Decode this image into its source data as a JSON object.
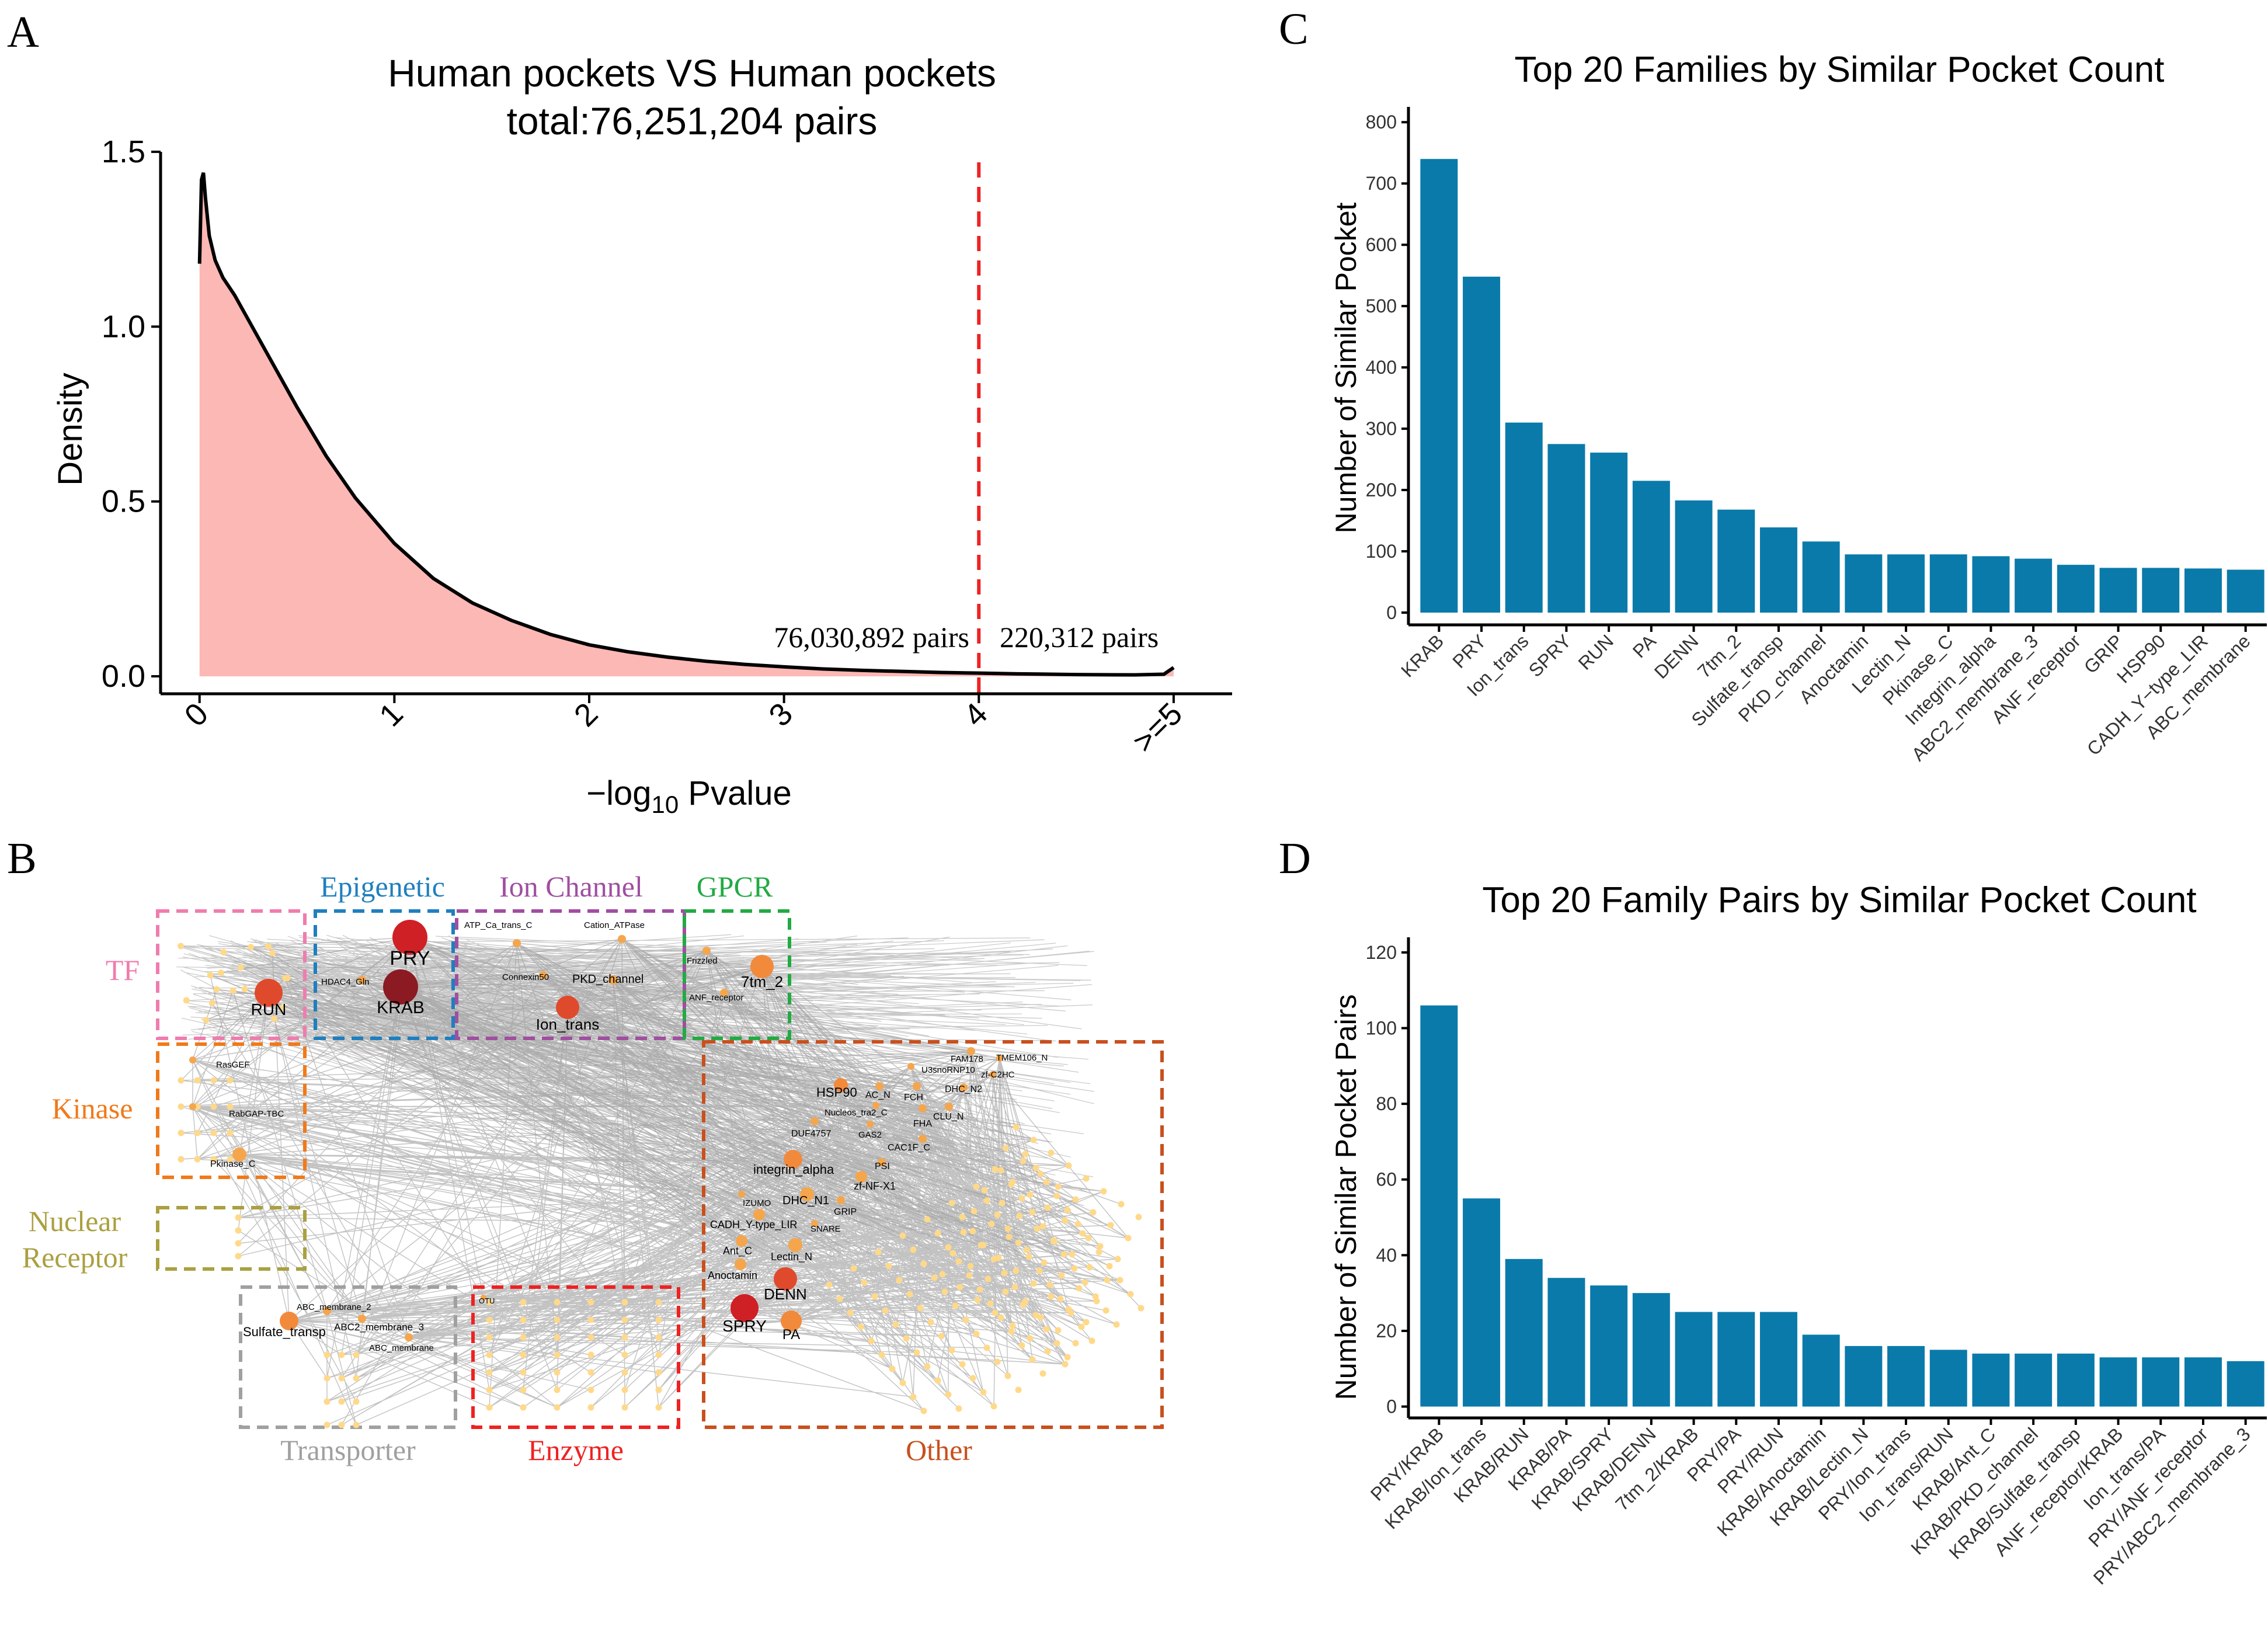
{
  "colors": {
    "bar": "#0a7aaa",
    "density_fill": "#fcb8b4",
    "density_line": "#000000",
    "threshold": "#ee2222",
    "edge": "#9a9a9a",
    "TF": "#f07cae",
    "Epigenetic": "#1f7fbf",
    "Ion Channel": "#a04ea0",
    "GPCR": "#22aa44",
    "Kinase": "#f07a1a",
    "Nuclear Receptor": "#aaa040",
    "Transporter": "#a0a0a0",
    "Enzyme": "#ee2222",
    "Other": "#c8501e"
  },
  "panels": {
    "A": {
      "letter": "A",
      "title": "Human pockets VS Human pockets",
      "subtitle": "total:76,251,204 pairs",
      "ylabel": "Density",
      "xlabel_prefix": "−log",
      "xlabel_sub": "10",
      "xlabel_suffix": " Pvalue",
      "left_annotation": "76,030,892 pairs",
      "right_annotation": "220,312 pairs"
    },
    "B": {
      "letter": "B",
      "groups": [
        {
          "name": "TF",
          "color_key": "TF"
        },
        {
          "name": "Epigenetic",
          "color_key": "Epigenetic"
        },
        {
          "name": "Ion Channel",
          "color_key": "Ion Channel"
        },
        {
          "name": "GPCR",
          "color_key": "GPCR"
        },
        {
          "name": "Kinase",
          "color_key": "Kinase"
        },
        {
          "name": "Nuclear",
          "color_key": "Nuclear Receptor"
        },
        {
          "name": "Receptor",
          "color_key": "Nuclear Receptor"
        },
        {
          "name": "Transporter",
          "color_key": "Transporter"
        },
        {
          "name": "Enzyme",
          "color_key": "Enzyme"
        },
        {
          "name": "Other",
          "color_key": "Other"
        }
      ],
      "nodes": [
        {
          "label": "PRY",
          "tier": 1
        },
        {
          "label": "KRAB",
          "tier": 0
        },
        {
          "label": "RUN",
          "tier": 2
        },
        {
          "label": "HDAC4_Gln",
          "tier": 4
        },
        {
          "label": "ATP_Ca_trans_C",
          "tier": 4
        },
        {
          "label": "Cation_ATPase",
          "tier": 4
        },
        {
          "label": "Connexin50",
          "tier": 4
        },
        {
          "label": "PKD_channel",
          "tier": 4
        },
        {
          "label": "Ion_trans",
          "tier": 2
        },
        {
          "label": "Frizzled",
          "tier": 4
        },
        {
          "label": "7tm_2",
          "tier": 3
        },
        {
          "label": "ANF_receptor",
          "tier": 4
        },
        {
          "label": "RasGEF",
          "tier": 4
        },
        {
          "label": "RabGAP-TBC",
          "tier": 4
        },
        {
          "label": "Pkinase_C",
          "tier": 4
        },
        {
          "label": "ABC_membrane_2",
          "tier": 4
        },
        {
          "label": "Sulfate_transp",
          "tier": 3
        },
        {
          "label": "ABC2_membrane_3",
          "tier": 4
        },
        {
          "label": "ABC_membrane",
          "tier": 4
        },
        {
          "label": "OTU",
          "tier": 4
        },
        {
          "label": "FAM178",
          "tier": 4
        },
        {
          "label": "TMEM106_N",
          "tier": 4
        },
        {
          "label": "U3snoRNP10",
          "tier": 4
        },
        {
          "label": "zf-C2HC",
          "tier": 4
        },
        {
          "label": "HSP90",
          "tier": 3
        },
        {
          "label": "AC_N",
          "tier": 4
        },
        {
          "label": "FCH",
          "tier": 4
        },
        {
          "label": "DHC_N2",
          "tier": 4
        },
        {
          "label": "Nucleos_tra2_C",
          "tier": 4
        },
        {
          "label": "FHA",
          "tier": 4
        },
        {
          "label": "CLU_N",
          "tier": 4
        },
        {
          "label": "DUF4757",
          "tier": 4
        },
        {
          "label": "GAS2",
          "tier": 4
        },
        {
          "label": "CAC1F_C",
          "tier": 4
        },
        {
          "label": "integrin_alpha",
          "tier": 3
        },
        {
          "label": "PSI",
          "tier": 4
        },
        {
          "label": "zf-NF-X1",
          "tier": 4
        },
        {
          "label": "IZUMO",
          "tier": 4
        },
        {
          "label": "DHC_N1",
          "tier": 4
        },
        {
          "label": "GRIP",
          "tier": 4
        },
        {
          "label": "CADH_Y-type_LIR",
          "tier": 4
        },
        {
          "label": "SNARE",
          "tier": 4
        },
        {
          "label": "Ant_C",
          "tier": 4
        },
        {
          "label": "Lectin_N",
          "tier": 4
        },
        {
          "label": "Anoctamin",
          "tier": 4
        },
        {
          "label": "DENN",
          "tier": 2
        },
        {
          "label": "SPRY",
          "tier": 1
        },
        {
          "label": "PA",
          "tier": 3
        }
      ]
    },
    "C": {
      "letter": "C",
      "ylabel": "Number of Similar Pocket"
    },
    "D": {
      "letter": "D",
      "ylabel": "Number of Similar Pocket Pairs"
    }
  },
  "chart_data": [
    {
      "id": "A",
      "type": "area",
      "title": "Human pockets VS Human pockets",
      "subtitle": "total:76,251,204 pairs",
      "xlabel": "−log10 Pvalue",
      "ylabel": "Density",
      "xlim": [
        -0.2,
        5.3
      ],
      "ylim": [
        -0.05,
        1.55
      ],
      "x_ticks": [
        0,
        1,
        2,
        3,
        4,
        5
      ],
      "x_tick_labels": [
        "0",
        "1",
        "2",
        "3",
        "4",
        ">=5"
      ],
      "y_ticks": [
        0,
        0.5,
        1,
        1.5
      ],
      "y_tick_labels": [
        "0.0",
        "0.5",
        "1.0",
        "1.5"
      ],
      "threshold": 4,
      "x": [
        0,
        0.01,
        0.02,
        0.03,
        0.05,
        0.08,
        0.12,
        0.18,
        0.25,
        0.35,
        0.5,
        0.65,
        0.8,
        1.0,
        1.2,
        1.4,
        1.6,
        1.8,
        2.0,
        2.2,
        2.4,
        2.6,
        2.8,
        3.0,
        3.2,
        3.4,
        3.6,
        3.8,
        4.0,
        4.2,
        4.5,
        4.8,
        4.95,
        5.0
      ],
      "y": [
        1.18,
        1.42,
        1.44,
        1.37,
        1.26,
        1.19,
        1.14,
        1.09,
        1.02,
        0.92,
        0.77,
        0.63,
        0.51,
        0.38,
        0.28,
        0.21,
        0.16,
        0.12,
        0.09,
        0.07,
        0.055,
        0.043,
        0.034,
        0.027,
        0.021,
        0.017,
        0.014,
        0.011,
        0.009,
        0.007,
        0.005,
        0.004,
        0.006,
        0.025
      ]
    },
    {
      "id": "C",
      "type": "bar",
      "title": "Top 20 Families by Similar Pocket Count",
      "xlabel": "",
      "ylabel": "Number of Similar Pocket",
      "ylim": [
        -20,
        825
      ],
      "y_ticks": [
        0,
        100,
        200,
        300,
        400,
        500,
        600,
        700,
        800
      ],
      "categories": [
        "KRAB",
        "PRY",
        "Ion_trans",
        "SPRY",
        "RUN",
        "PA",
        "DENN",
        "7tm_2",
        "Sulfate_transp",
        "PKD_channel",
        "Anoctamin",
        "Lectin_N",
        "Pkinase_C",
        "Integrin_alpha",
        "ABC2_membrane_3",
        "ANF_receptor",
        "GRIP",
        "HSP90",
        "CADH_Y−type_LIR",
        "ABC_membrane"
      ],
      "values": [
        740,
        548,
        310,
        275,
        261,
        215,
        183,
        168,
        139,
        116,
        95,
        95,
        95,
        92,
        88,
        78,
        73,
        73,
        72,
        70
      ]
    },
    {
      "id": "D",
      "type": "bar",
      "title": "Top 20 Family Pairs by Similar Pocket Count",
      "xlabel": "",
      "ylabel": "Number of Similar Pocket Pairs",
      "ylim": [
        -3,
        124
      ],
      "y_ticks": [
        0,
        20,
        40,
        60,
        80,
        100,
        120
      ],
      "categories": [
        "PRY/KRAB",
        "KRAB/Ion_trans",
        "KRAB/RUN",
        "KRAB/PA",
        "KRAB/SPRY",
        "KRAB/DENN",
        "7tm_2/KRAB",
        "PRY/PA",
        "PRY/RUN",
        "KRAB/Anoctamin",
        "KRAB/Lectin_N",
        "PRY/Ion_trans",
        "Ion_trans/RUN",
        "KRAB/Ant_C",
        "KRAB/PKD_channel",
        "KRAB/Sulfate_transp",
        "ANF_receptor/KRAB",
        "Ion_trans/PA",
        "PRY/ANF_receptor",
        "PRY/ABC2_membrane_3"
      ],
      "values": [
        106,
        55,
        39,
        34,
        32,
        30,
        25,
        25,
        25,
        19,
        16,
        16,
        15,
        14,
        14,
        14,
        13,
        13,
        13,
        12
      ]
    }
  ]
}
